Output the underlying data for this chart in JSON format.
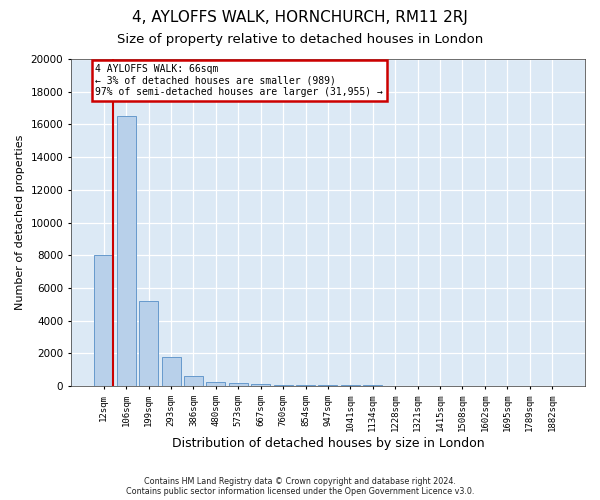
{
  "title": "4, AYLOFFS WALK, HORNCHURCH, RM11 2RJ",
  "subtitle": "Size of property relative to detached houses in London",
  "xlabel": "Distribution of detached houses by size in London",
  "ylabel": "Number of detached properties",
  "bins": [
    "12sqm",
    "106sqm",
    "199sqm",
    "293sqm",
    "386sqm",
    "480sqm",
    "573sqm",
    "667sqm",
    "760sqm",
    "854sqm",
    "947sqm",
    "1041sqm",
    "1134sqm",
    "1228sqm",
    "1321sqm",
    "1415sqm",
    "1508sqm",
    "1602sqm",
    "1695sqm",
    "1789sqm",
    "1882sqm"
  ],
  "values": [
    8000,
    16500,
    5200,
    1800,
    600,
    280,
    200,
    150,
    100,
    90,
    75,
    60,
    45,
    35,
    28,
    22,
    18,
    14,
    10,
    8,
    5
  ],
  "bar_color": "#b8d0ea",
  "bar_edge_color": "#6699cc",
  "annotation_text": "4 AYLOFFS WALK: 66sqm\n← 3% of detached houses are smaller (989)\n97% of semi-detached houses are larger (31,955) →",
  "annotation_box_facecolor": "white",
  "annotation_box_edgecolor": "#cc0000",
  "property_line_color": "#cc0000",
  "ylim_max": 20000,
  "yticks": [
    0,
    2000,
    4000,
    6000,
    8000,
    10000,
    12000,
    14000,
    16000,
    18000,
    20000
  ],
  "grid_color": "#ffffff",
  "plot_bg_color": "#dce9f5",
  "footer_line1": "Contains HM Land Registry data © Crown copyright and database right 2024.",
  "footer_line2": "Contains public sector information licensed under the Open Government Licence v3.0."
}
